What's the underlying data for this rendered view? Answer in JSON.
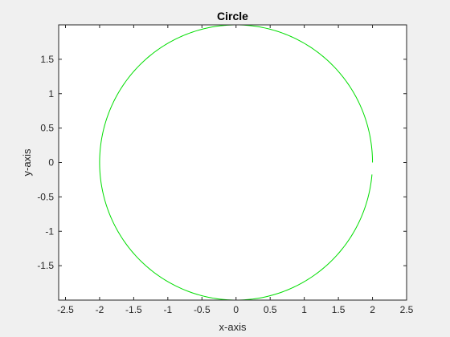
{
  "chart_data": {
    "type": "line",
    "title": "Circle",
    "xlabel": "x-axis",
    "ylabel": "y-axis",
    "xlim": [
      -2.6,
      2.5
    ],
    "ylim": [
      -2.0,
      2.0
    ],
    "xticks": [
      -2.5,
      -2,
      -1.5,
      -1,
      -0.5,
      0,
      0.5,
      1,
      1.5,
      2,
      2.5
    ],
    "xtick_labels": [
      "-2.5",
      "-2",
      "-1.5",
      "-1",
      "-0.5",
      "0",
      "0.5",
      "1",
      "1.5",
      "2",
      "2.5"
    ],
    "yticks": [
      -1.5,
      -1,
      -0.5,
      0,
      0.5,
      1,
      1.5
    ],
    "ytick_labels": [
      "-1.5",
      "-1",
      "-0.5",
      "0",
      "0.5",
      "1",
      "1.5"
    ],
    "grid": false,
    "legend": false,
    "series": [
      {
        "color": "#00dd00",
        "shape": "circle",
        "center": [
          0,
          0
        ],
        "radius": 2,
        "theta_start_deg": 0,
        "theta_end_deg": 355
      }
    ]
  },
  "colors": {
    "figure_background": "#f0f0f0",
    "axes_background": "#ffffff",
    "axes_edge": "#262626",
    "line": "#00dd00"
  }
}
